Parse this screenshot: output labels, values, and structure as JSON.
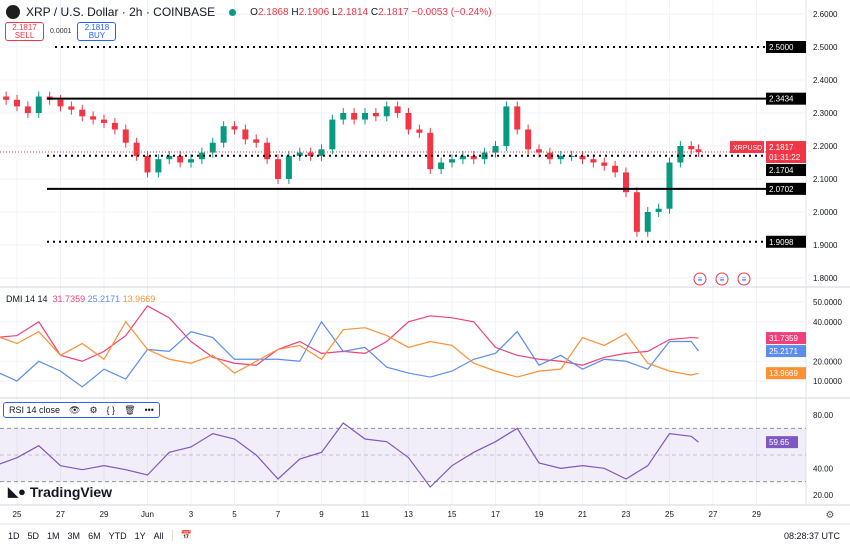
{
  "header": {
    "symbol": "XRP / U.S. Dollar · 2h · COINBASE",
    "logo": "X",
    "ohlc": {
      "o_label": "O",
      "o": "2.1868",
      "h_label": "H",
      "h": "2.1906",
      "l_label": "L",
      "l": "2.1814",
      "c_label": "C",
      "c": "2.1817",
      "change": "−0.0053 (−0.24%)"
    }
  },
  "trade": {
    "sell_price": "2.1817",
    "sell_label": "SELL",
    "spread": "0.0001",
    "buy_price": "2.1818",
    "buy_label": "BUY"
  },
  "dmi_legend": {
    "label": "DMI 14 14",
    "v1": "31.7359",
    "v2": "25.2171",
    "v3": "13.9669"
  },
  "rsi_legend": {
    "label": "RSI 14 close"
  },
  "brand": "TradingView",
  "bottom": {
    "ranges": [
      "1D",
      "5D",
      "1M",
      "3M",
      "6M",
      "YTD",
      "1Y",
      "All"
    ],
    "clock": "08:28:37 UTC"
  },
  "colors": {
    "up": "#089981",
    "down": "#f23645",
    "dmi_red": "#f23f7a",
    "dmi_blue": "#5b8def",
    "dmi_orange": "#ff8f33",
    "rsi": "#7e57c2"
  },
  "chart_data": [
    {
      "type": "candlestick",
      "title": "XRP / U.S. Dollar · 2h · COINBASE",
      "symbol_tag": "XRPUSD",
      "last_price": "2.1817",
      "countdown": "01:31:22",
      "ylim": [
        1.78,
        2.62
      ],
      "y_ticks": [
        "2.6000",
        "2.5000",
        "2.4000",
        "2.3000",
        "2.2000",
        "2.1000",
        "2.0000",
        "1.9000",
        "1.8000"
      ],
      "x_ticks": [
        "25",
        "27",
        "29",
        "Jun",
        "3",
        "5",
        "7",
        "9",
        "11",
        "13",
        "15",
        "17",
        "19",
        "21",
        "23",
        "25",
        "27",
        "29"
      ],
      "times": [
        "5/24 12",
        "5/25 0",
        "5/25 12",
        "5/26 0",
        "5/26 12",
        "5/27 0",
        "5/27 12",
        "5/28 0",
        "5/28 12",
        "5/29 0",
        "5/29 12",
        "5/30 0",
        "5/30 12",
        "5/31 0",
        "5/31 12",
        "6/1 0",
        "6/1 12",
        "6/2 0",
        "6/2 12",
        "6/3 0",
        "6/3 12",
        "6/4 0",
        "6/4 12",
        "6/5 0",
        "6/5 12",
        "6/6 0",
        "6/6 12",
        "6/7 0",
        "6/7 12",
        "6/8 0",
        "6/8 12",
        "6/9 0",
        "6/9 12",
        "6/10 0",
        "6/10 12",
        "6/11 0",
        "6/11 12",
        "6/12 0",
        "6/12 12",
        "6/13 0",
        "6/13 12",
        "6/14 0",
        "6/14 12",
        "6/15 0",
        "6/15 12",
        "6/16 0",
        "6/16 12",
        "6/17 0",
        "6/17 12",
        "6/18 0",
        "6/18 12",
        "6/19 0",
        "6/19 12",
        "6/20 0",
        "6/20 12",
        "6/21 0",
        "6/21 12",
        "6/22 0",
        "6/22 12",
        "6/23 0",
        "6/23 12",
        "6/24 0",
        "6/24 12",
        "6/25 0",
        "6/25 8"
      ],
      "close": [
        2.34,
        2.32,
        2.3,
        2.35,
        2.34,
        2.32,
        2.31,
        2.29,
        2.28,
        2.27,
        2.25,
        2.21,
        2.17,
        2.12,
        2.16,
        2.17,
        2.15,
        2.16,
        2.18,
        2.21,
        2.26,
        2.25,
        2.22,
        2.21,
        2.16,
        2.1,
        2.17,
        2.18,
        2.17,
        2.19,
        2.28,
        2.3,
        2.28,
        2.3,
        2.29,
        2.32,
        2.3,
        2.25,
        2.24,
        2.13,
        2.15,
        2.16,
        2.17,
        2.16,
        2.18,
        2.2,
        2.32,
        2.25,
        2.19,
        2.18,
        2.16,
        2.17,
        2.17,
        2.16,
        2.15,
        2.14,
        2.12,
        2.06,
        1.94,
        2.0,
        2.01,
        2.15,
        2.2,
        2.19,
        2.1817
      ],
      "levels": [
        {
          "value": "2.5000",
          "style": "dotted"
        },
        {
          "value": "2.3434",
          "style": "solid"
        },
        {
          "value": "2.1704",
          "style": "dotted"
        },
        {
          "value": "2.0702",
          "style": "solid"
        },
        {
          "value": "1.9098",
          "style": "dotted"
        }
      ],
      "events": [
        "flag-us-icon",
        "flag-us-icon",
        "flag-us-icon"
      ]
    },
    {
      "type": "line",
      "title": "DMI 14 14",
      "ylim": [
        5,
        55
      ],
      "y_ticks": [
        "50.0000",
        "40.0000",
        "20.0000",
        "10.0000"
      ],
      "times": [
        "5/24 0",
        "5/25 0",
        "5/26 0",
        "5/27 0",
        "5/28 0",
        "5/29 0",
        "5/30 0",
        "5/31 0",
        "6/1 0",
        "6/2 0",
        "6/3 0",
        "6/4 0",
        "6/5 0",
        "6/6 0",
        "6/7 0",
        "6/8 0",
        "6/9 0",
        "6/10 0",
        "6/11 0",
        "6/12 0",
        "6/13 0",
        "6/14 0",
        "6/15 0",
        "6/16 0",
        "6/17 0",
        "6/18 0",
        "6/19 0",
        "6/20 0",
        "6/21 0",
        "6/22 0",
        "6/23 0",
        "6/24 0",
        "6/25 0",
        "6/25 8"
      ],
      "series": [
        {
          "name": "31.7359",
          "color": "#f23f7a",
          "values": [
            32,
            33,
            40,
            23,
            20,
            25,
            33,
            48,
            42,
            30,
            22,
            19,
            18,
            26,
            30,
            24,
            25,
            24,
            30,
            40,
            43,
            42,
            40,
            27,
            23,
            21,
            20,
            18,
            22,
            24,
            25,
            31,
            32,
            31.7359
          ]
        },
        {
          "name": "25.2171",
          "color": "#5b8def",
          "values": [
            15,
            10,
            20,
            15,
            7,
            16,
            11,
            26,
            25,
            35,
            32,
            21,
            21,
            21,
            20,
            40,
            25,
            27,
            17,
            14,
            12,
            15,
            21,
            24,
            35,
            18,
            23,
            16,
            21,
            20,
            16,
            30,
            30,
            25.2171
          ]
        },
        {
          "name": "13.9669",
          "color": "#ff8f33",
          "values": [
            33,
            29,
            35,
            23,
            29,
            21,
            40,
            26,
            21,
            19,
            23,
            14,
            20,
            26,
            28,
            21,
            36,
            37,
            33,
            27,
            30,
            28,
            19,
            15,
            12,
            15,
            16,
            32,
            28,
            34,
            19,
            15,
            13,
            13.9669
          ]
        }
      ]
    },
    {
      "type": "line",
      "title": "RSI 14 close",
      "ylim": [
        15,
        88
      ],
      "y_ticks": [
        "80.00",
        "40.00",
        "20.00"
      ],
      "bands": [
        70,
        50,
        30
      ],
      "last": "59.65",
      "times": [
        "5/24 0",
        "5/25 0",
        "5/26 0",
        "5/27 0",
        "5/28 0",
        "5/29 0",
        "5/30 0",
        "5/31 0",
        "6/1 0",
        "6/2 0",
        "6/3 0",
        "6/4 0",
        "6/5 0",
        "6/6 0",
        "6/7 0",
        "6/8 0",
        "6/9 0",
        "6/10 0",
        "6/11 0",
        "6/12 0",
        "6/13 0",
        "6/14 0",
        "6/15 0",
        "6/16 0",
        "6/17 0",
        "6/18 0",
        "6/19 0",
        "6/20 0",
        "6/21 0",
        "6/22 0",
        "6/23 0",
        "6/24 0",
        "6/25 0",
        "6/25 8"
      ],
      "values": [
        42,
        48,
        57,
        42,
        39,
        42,
        39,
        35,
        52,
        56,
        66,
        62,
        50,
        32,
        47,
        52,
        74,
        62,
        60,
        48,
        26,
        42,
        52,
        60,
        70,
        44,
        40,
        42,
        40,
        32,
        42,
        66,
        64,
        59.65
      ]
    }
  ]
}
